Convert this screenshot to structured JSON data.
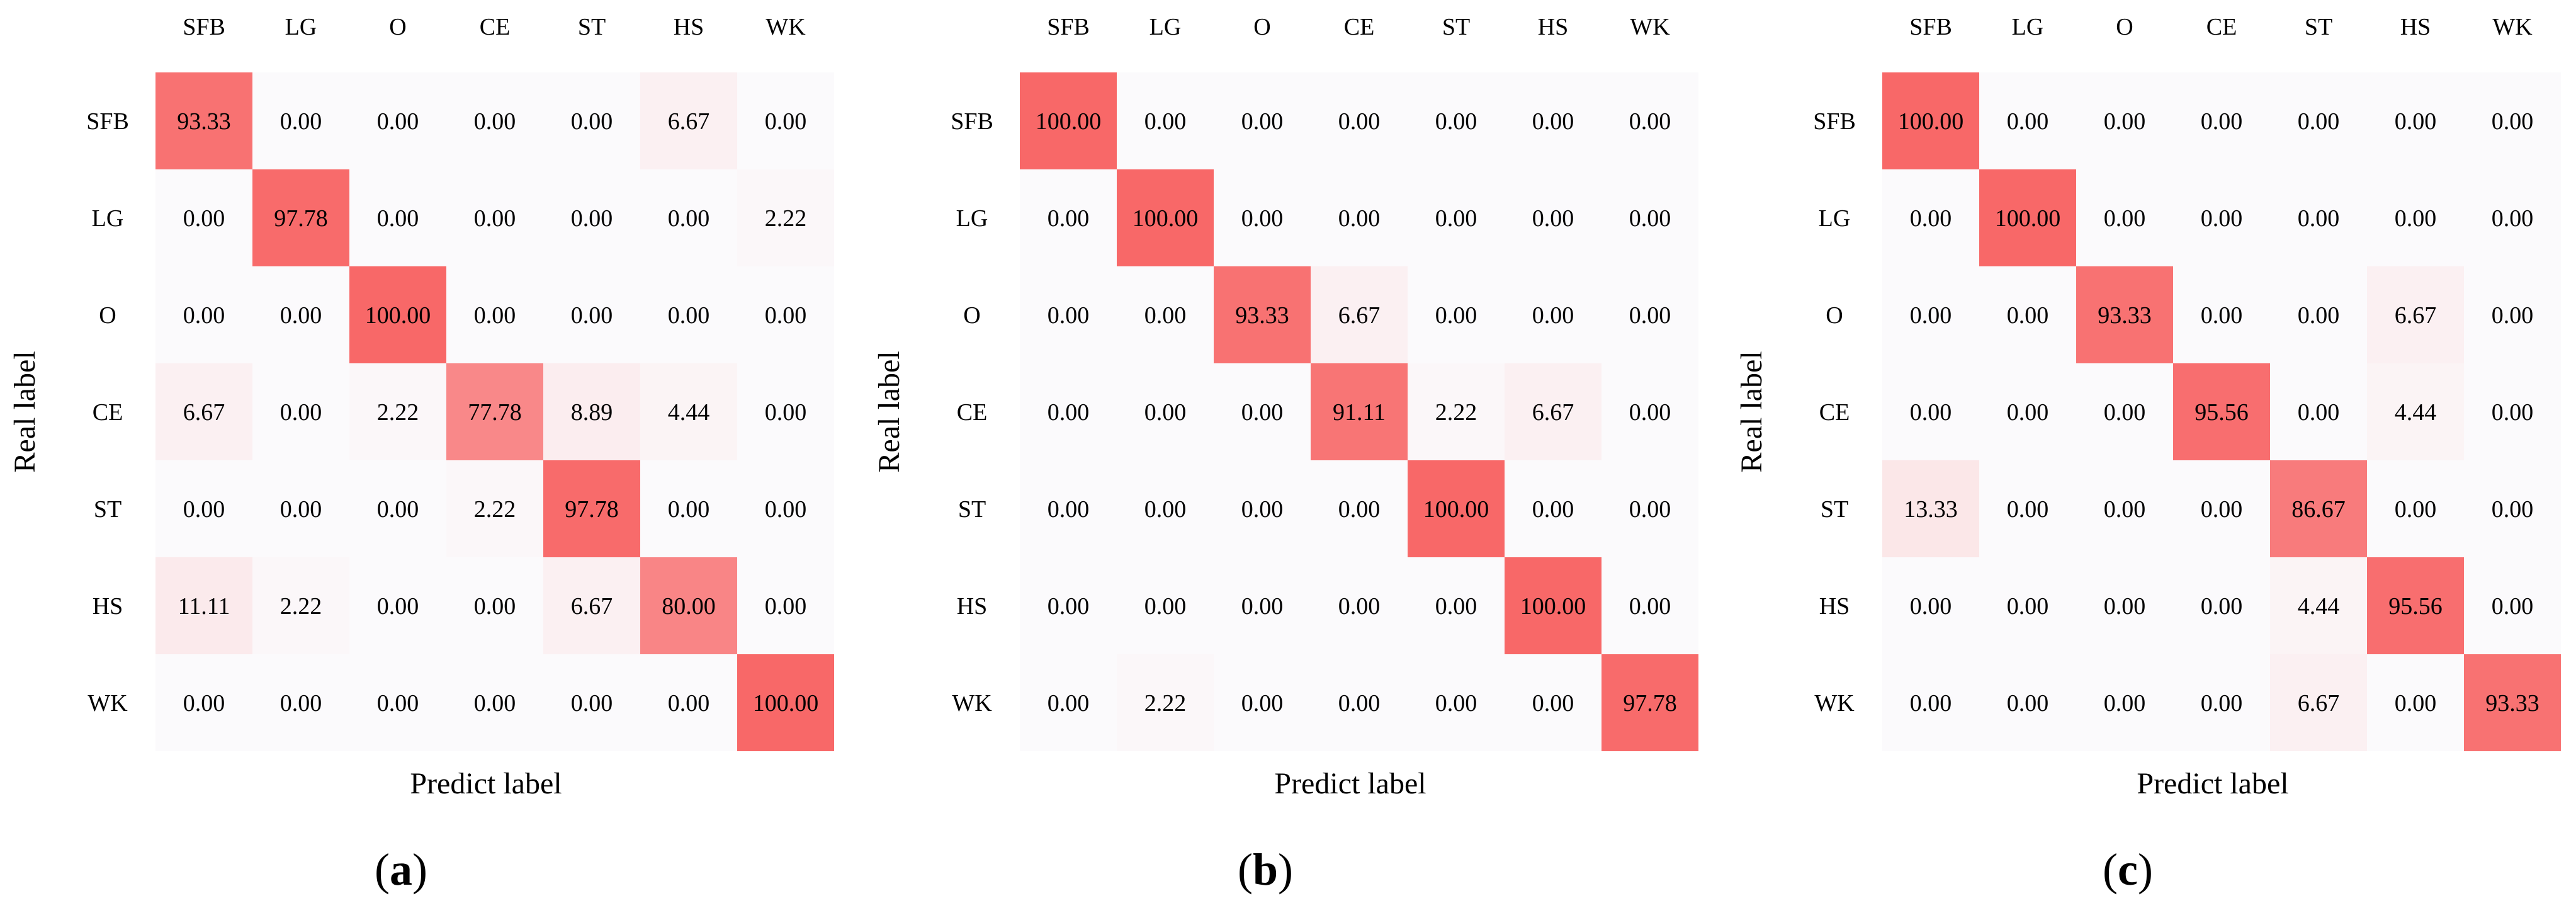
{
  "colors": {
    "low": "#fbfafc",
    "high": "#f86868",
    "text": "#000000"
  },
  "chart_data": [
    {
      "type": "heatmap",
      "panel_label": "(a)",
      "xlabel": "Predict label",
      "ylabel": "Real label",
      "x_categories": [
        "SFB",
        "LG",
        "O",
        "CE",
        "ST",
        "HS",
        "WK"
      ],
      "y_categories": [
        "SFB",
        "LG",
        "O",
        "CE",
        "ST",
        "HS",
        "WK"
      ],
      "vmin": 0,
      "vmax": 100,
      "values": [
        [
          93.33,
          0.0,
          0.0,
          0.0,
          0.0,
          6.67,
          0.0
        ],
        [
          0.0,
          97.78,
          0.0,
          0.0,
          0.0,
          0.0,
          2.22
        ],
        [
          0.0,
          0.0,
          100.0,
          0.0,
          0.0,
          0.0,
          0.0
        ],
        [
          6.67,
          0.0,
          2.22,
          77.78,
          8.89,
          4.44,
          0.0
        ],
        [
          0.0,
          0.0,
          0.0,
          2.22,
          97.78,
          0.0,
          0.0
        ],
        [
          11.11,
          2.22,
          0.0,
          0.0,
          6.67,
          80.0,
          0.0
        ],
        [
          0.0,
          0.0,
          0.0,
          0.0,
          0.0,
          0.0,
          100.0
        ]
      ]
    },
    {
      "type": "heatmap",
      "panel_label": "(b)",
      "xlabel": "Predict label",
      "ylabel": "Real label",
      "x_categories": [
        "SFB",
        "LG",
        "O",
        "CE",
        "ST",
        "HS",
        "WK"
      ],
      "y_categories": [
        "SFB",
        "LG",
        "O",
        "CE",
        "ST",
        "HS",
        "WK"
      ],
      "vmin": 0,
      "vmax": 100,
      "values": [
        [
          100.0,
          0.0,
          0.0,
          0.0,
          0.0,
          0.0,
          0.0
        ],
        [
          0.0,
          100.0,
          0.0,
          0.0,
          0.0,
          0.0,
          0.0
        ],
        [
          0.0,
          0.0,
          93.33,
          6.67,
          0.0,
          0.0,
          0.0
        ],
        [
          0.0,
          0.0,
          0.0,
          91.11,
          2.22,
          6.67,
          0.0
        ],
        [
          0.0,
          0.0,
          0.0,
          0.0,
          100.0,
          0.0,
          0.0
        ],
        [
          0.0,
          0.0,
          0.0,
          0.0,
          0.0,
          100.0,
          0.0
        ],
        [
          0.0,
          2.22,
          0.0,
          0.0,
          0.0,
          0.0,
          97.78
        ]
      ]
    },
    {
      "type": "heatmap",
      "panel_label": "(c)",
      "xlabel": "Predict label",
      "ylabel": "Real label",
      "x_categories": [
        "SFB",
        "LG",
        "O",
        "CE",
        "ST",
        "HS",
        "WK"
      ],
      "y_categories": [
        "SFB",
        "LG",
        "O",
        "CE",
        "ST",
        "HS",
        "WK"
      ],
      "vmin": 0,
      "vmax": 100,
      "values": [
        [
          100.0,
          0.0,
          0.0,
          0.0,
          0.0,
          0.0,
          0.0
        ],
        [
          0.0,
          100.0,
          0.0,
          0.0,
          0.0,
          0.0,
          0.0
        ],
        [
          0.0,
          0.0,
          93.33,
          0.0,
          0.0,
          6.67,
          0.0
        ],
        [
          0.0,
          0.0,
          0.0,
          95.56,
          0.0,
          4.44,
          0.0
        ],
        [
          13.33,
          0.0,
          0.0,
          0.0,
          86.67,
          0.0,
          0.0
        ],
        [
          0.0,
          0.0,
          0.0,
          0.0,
          4.44,
          95.56,
          0.0
        ],
        [
          0.0,
          0.0,
          0.0,
          0.0,
          6.67,
          0.0,
          93.33
        ]
      ]
    }
  ]
}
